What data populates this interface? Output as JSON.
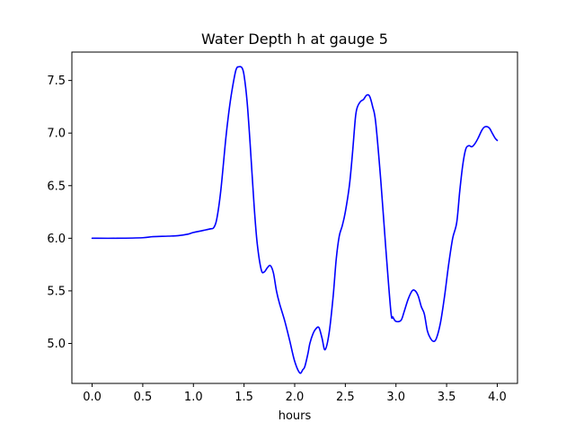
{
  "chart_data": {
    "type": "line",
    "title": "Water Depth h at gauge 5",
    "xlabel": "hours",
    "ylabel": "",
    "xlim": [
      -0.2,
      4.2
    ],
    "ylim": [
      4.62,
      7.77
    ],
    "x_ticks": [
      0.0,
      0.5,
      1.0,
      1.5,
      2.0,
      2.5,
      3.0,
      3.5,
      4.0
    ],
    "x_tick_labels": [
      "0.0",
      "0.5",
      "1.0",
      "1.5",
      "2.0",
      "2.5",
      "3.0",
      "3.5",
      "4.0"
    ],
    "y_ticks": [
      5.0,
      5.5,
      6.0,
      6.5,
      7.0,
      7.5
    ],
    "y_tick_labels": [
      "5.0",
      "5.5",
      "6.0",
      "6.5",
      "7.0",
      "7.5"
    ],
    "grid": false,
    "legend": "none",
    "series": [
      {
        "color": "#0000ff",
        "x": [
          0.0,
          0.25,
          0.5,
          0.6,
          0.75,
          0.85,
          0.95,
          1.0,
          1.1,
          1.17,
          1.2,
          1.23,
          1.27,
          1.32,
          1.35,
          1.38,
          1.42,
          1.45,
          1.48,
          1.5,
          1.53,
          1.56,
          1.6,
          1.63,
          1.67,
          1.7,
          1.73,
          1.76,
          1.79,
          1.82,
          1.85,
          1.9,
          1.95,
          2.0,
          2.05,
          2.08,
          2.1,
          2.13,
          2.15,
          2.18,
          2.21,
          2.24,
          2.27,
          2.3,
          2.34,
          2.38,
          2.41,
          2.44,
          2.47,
          2.5,
          2.54,
          2.57,
          2.6,
          2.62,
          2.65,
          2.68,
          2.71,
          2.74,
          2.77,
          2.8,
          2.85,
          2.9,
          2.95,
          2.97,
          3.0,
          3.05,
          3.08,
          3.12,
          3.16,
          3.19,
          3.22,
          3.25,
          3.28,
          3.31,
          3.34,
          3.37,
          3.4,
          3.44,
          3.48,
          3.52,
          3.56,
          3.6,
          3.63,
          3.66,
          3.69,
          3.72,
          3.75,
          3.78,
          3.81,
          3.85,
          3.88,
          3.92,
          3.95,
          3.98,
          4.0
        ],
        "y": [
          6.0,
          6.0,
          6.005,
          6.015,
          6.02,
          6.025,
          6.04,
          6.055,
          6.075,
          6.09,
          6.1,
          6.18,
          6.45,
          6.95,
          7.2,
          7.4,
          7.6,
          7.63,
          7.62,
          7.55,
          7.3,
          6.9,
          6.3,
          5.95,
          5.7,
          5.68,
          5.72,
          5.74,
          5.67,
          5.5,
          5.38,
          5.22,
          5.03,
          4.83,
          4.72,
          4.75,
          4.78,
          4.9,
          5.0,
          5.09,
          5.14,
          5.15,
          5.05,
          4.94,
          5.1,
          5.45,
          5.8,
          6.02,
          6.12,
          6.25,
          6.5,
          6.8,
          7.15,
          7.25,
          7.3,
          7.32,
          7.36,
          7.35,
          7.25,
          7.1,
          6.55,
          5.9,
          5.3,
          5.25,
          5.21,
          5.22,
          5.3,
          5.42,
          5.5,
          5.5,
          5.45,
          5.35,
          5.28,
          5.12,
          5.05,
          5.02,
          5.05,
          5.2,
          5.45,
          5.75,
          6.0,
          6.15,
          6.45,
          6.7,
          6.85,
          6.88,
          6.87,
          6.9,
          6.95,
          7.03,
          7.06,
          7.05,
          7.0,
          6.95,
          6.93
        ]
      }
    ]
  }
}
